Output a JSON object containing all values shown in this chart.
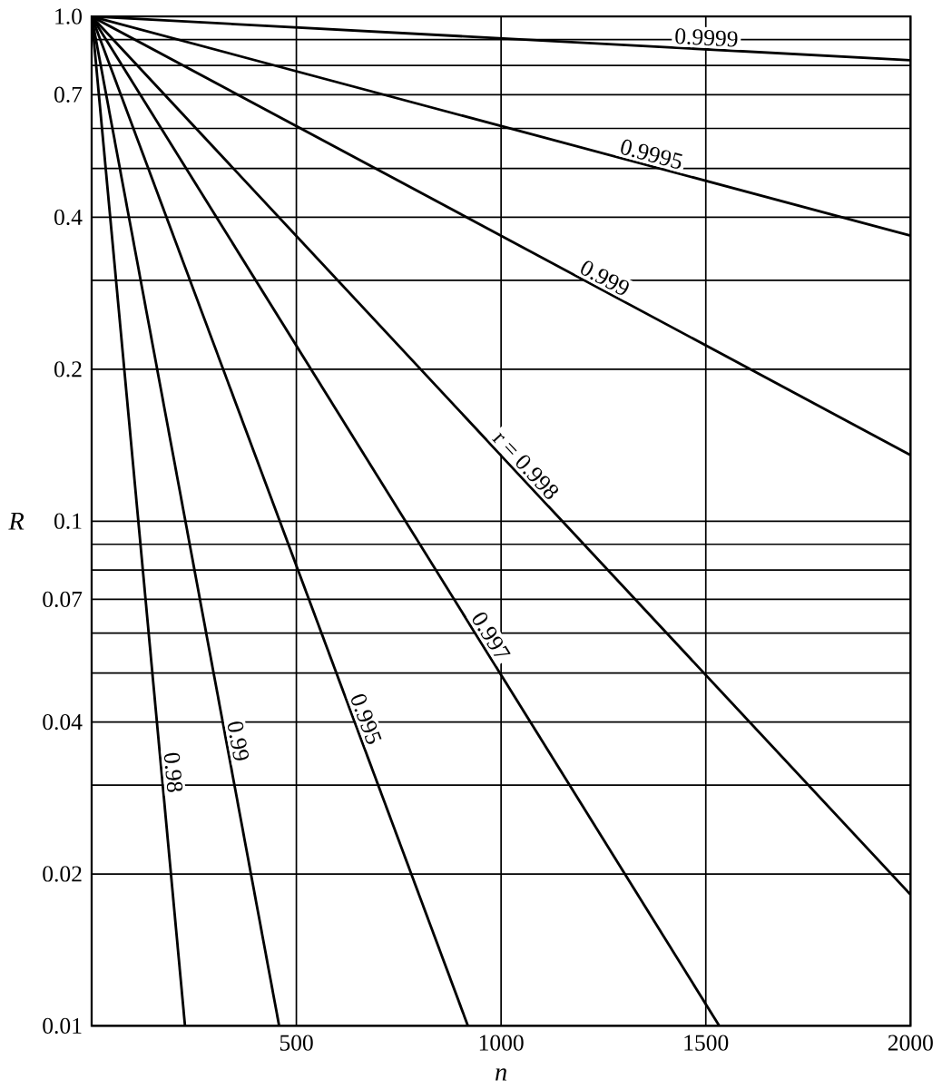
{
  "chart_data": {
    "type": "line",
    "xlabel": "n",
    "ylabel": "R",
    "log": "y",
    "grid": true,
    "marker": "none",
    "line_style": "solid",
    "xlim": [
      0,
      2000
    ],
    "xticks": [
      500,
      1000,
      1500,
      2000
    ],
    "ylim": [
      0.01,
      1
    ],
    "yticks": [
      {
        "value": 1,
        "label": "1.0"
      },
      {
        "value": 0.9,
        "label": null
      },
      {
        "value": 0.8,
        "label": null
      },
      0.7,
      {
        "value": 0.6,
        "label": null
      },
      {
        "value": 0.5,
        "label": null
      },
      0.4,
      {
        "value": 0.3,
        "label": null
      },
      0.2,
      0.1,
      {
        "value": 0.09,
        "label": null
      },
      {
        "value": 0.08,
        "label": null
      },
      0.07,
      {
        "value": 0.06,
        "label": null
      },
      {
        "value": 0.05,
        "label": null
      },
      0.04,
      {
        "value": 0.03,
        "label": null
      },
      0.02,
      0.01
    ],
    "series": [
      {
        "name": "0.9999",
        "color": "#000000",
        "x": [
          0,
          2000
        ],
        "values": [
          1,
          0.8187
        ]
      },
      {
        "name": "0.9995",
        "color": "#000000",
        "x": [
          0,
          2000
        ],
        "values": [
          1,
          0.3679
        ]
      },
      {
        "name": "0.999",
        "color": "#000000",
        "x": [
          0,
          2000
        ],
        "values": [
          1,
          0.1352
        ]
      },
      {
        "name": "r = 0.998",
        "color": "#000000",
        "x": [
          0,
          2000
        ],
        "values": [
          1,
          0.0182
        ]
      },
      {
        "name": "0.997",
        "color": "#000000",
        "x": [
          0,
          1533
        ],
        "values": [
          1,
          0.01
        ]
      },
      {
        "name": "0.995",
        "color": "#000000",
        "x": [
          0,
          919
        ],
        "values": [
          1,
          0.01
        ]
      },
      {
        "name": "0.99",
        "color": "#000000",
        "x": [
          0,
          458
        ],
        "values": [
          1,
          0.01
        ]
      },
      {
        "name": "0.98",
        "color": "#000000",
        "x": [
          0,
          228
        ],
        "values": [
          1,
          0.01
        ]
      }
    ]
  }
}
